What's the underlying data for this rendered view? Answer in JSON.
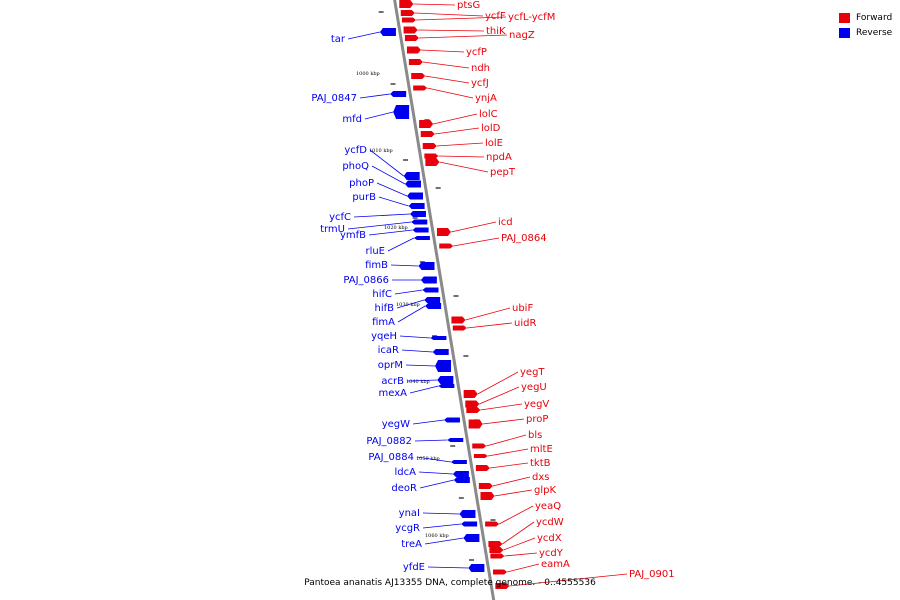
{
  "legend": [
    {
      "label": "Forward",
      "color": "#e8000b"
    },
    {
      "label": "Reverse",
      "color": "#0000f0"
    }
  ],
  "caption": "Pantoea ananatis AJ13355 DNA, complete genome. - 0..4555536",
  "colors": {
    "forward": "#e8000b",
    "reverse": "#0000f0",
    "backbone": "#999999"
  },
  "ticks": [
    "1000 kbp",
    "1010 kbp",
    "1020 kbp",
    "1030 kbp",
    "1040 kbp",
    "1050 kbp",
    "1060 kbp"
  ],
  "forward_genes": [
    "ptsG",
    "ycfF",
    "ycfL-ycfM",
    "thiK",
    "nagZ",
    "ycfP",
    "ndh",
    "ycfJ",
    "ynjA",
    "lolC",
    "lolD",
    "lolE",
    "npdA",
    "pepT",
    "icd",
    "PAJ_0864",
    "ubiF",
    "uidR",
    "yegT",
    "yegU",
    "yegV",
    "proP",
    "bls",
    "mltE",
    "tktB",
    "dxs",
    "glpK",
    "yeaQ",
    "ycdW",
    "ycdX",
    "ycdY",
    "eamA",
    "PAJ_0901"
  ],
  "reverse_genes": [
    "tar",
    "PAJ_0847",
    "mfd",
    "ycfD",
    "phoQ",
    "phoP",
    "purB",
    "ycfC",
    "trmU",
    "ymfB",
    "rluE",
    "fimB",
    "PAJ_0866",
    "hifC",
    "hifB",
    "fimA",
    "yqeH",
    "icaR",
    "oprM",
    "acrB",
    "mexA",
    "yegW",
    "PAJ_0882",
    "PAJ_0884",
    "ldcA",
    "deoR",
    "ynaI",
    "ycgR",
    "treA",
    "yfdE"
  ]
}
